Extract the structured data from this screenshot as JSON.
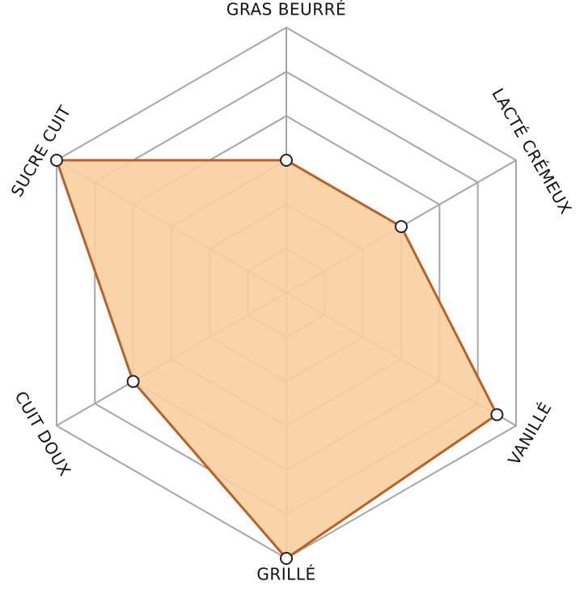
{
  "chart_data": {
    "type": "radar",
    "categories": [
      "GRAS BEURRÉ",
      "LACTÉ CRÉMEUX",
      "VANILLÉ",
      "GRILLÉ",
      "CUIT DOUX",
      "SUCRE CUIT"
    ],
    "values": [
      3,
      3,
      5.5,
      6,
      4,
      6
    ],
    "rlim": [
      0,
      6
    ],
    "rticks": [
      1,
      2,
      3,
      4,
      5,
      6
    ],
    "color": "#b8622a",
    "fill": "#f8cfa0",
    "grid": true
  }
}
